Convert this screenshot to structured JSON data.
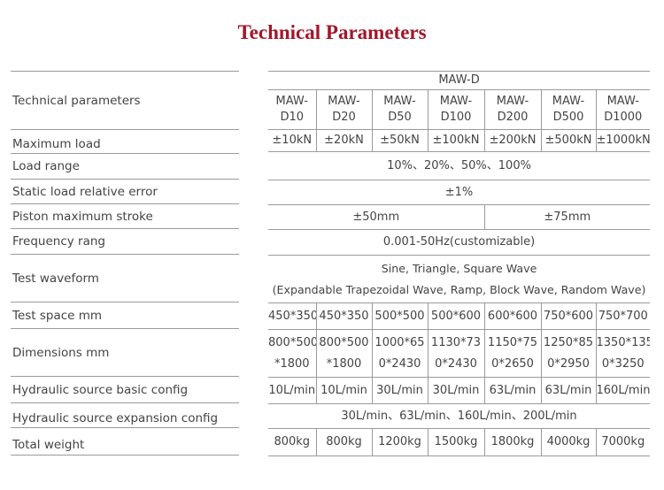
{
  "title": "Technical Parameters",
  "labels": [
    "Technical parameters",
    "Maximum load",
    "Load range",
    "Static load relative error",
    "Piston maximum stroke",
    "Frequency rang",
    "Test waveform",
    "Test space mm",
    "Dimensions mm",
    "Hydraulic source basic config",
    "Hydraulic source expansion config",
    "Total weight"
  ],
  "group": "MAW-D",
  "models": [
    [
      "MAW-",
      "D10"
    ],
    [
      "MAW-",
      "D20"
    ],
    [
      "MAW-",
      "D50"
    ],
    [
      "MAW-",
      "D100"
    ],
    [
      "MAW-",
      "D200"
    ],
    [
      "MAW-",
      "D500"
    ],
    [
      "MAW-",
      "D1000"
    ]
  ],
  "max_load": [
    "±10kN",
    "±20kN",
    "±50kN",
    "±100kN",
    "±200kN",
    "±500kN",
    "±1000kN"
  ],
  "load_range": "10%、20%、50%、100%",
  "static_error": "±1%",
  "stroke": [
    "±50mm",
    "±75mm"
  ],
  "frequency": "0.001-50Hz(customizable)",
  "waveform": [
    "Sine, Triangle, Square Wave",
    "(Expandable Trapezoidal Wave, Ramp, Block Wave, Random Wave)"
  ],
  "test_space": [
    "450*350",
    "450*350",
    "500*500",
    "500*600",
    "600*600",
    "750*600",
    "750*700"
  ],
  "dimensions": [
    [
      "800*500",
      "*1800"
    ],
    [
      "800*500",
      "*1800"
    ],
    [
      "1000*65",
      "0*2430"
    ],
    [
      "1130*73",
      "0*2430"
    ],
    [
      "1150*75",
      "0*2650"
    ],
    [
      "1250*85",
      "0*2950"
    ],
    [
      "1350*135",
      "0*3250"
    ]
  ],
  "hydraulic_basic": [
    "10L/min",
    "10L/min",
    "30L/min",
    "30L/min",
    "63L/min",
    "63L/min",
    "160L/min"
  ],
  "hydraulic_expansion": "30L/min、63L/min、160L/min、200L/min",
  "weight": [
    "800kg",
    "800kg",
    "1200kg",
    "1500kg",
    "1800kg",
    "4000kg",
    "7000kg"
  ]
}
